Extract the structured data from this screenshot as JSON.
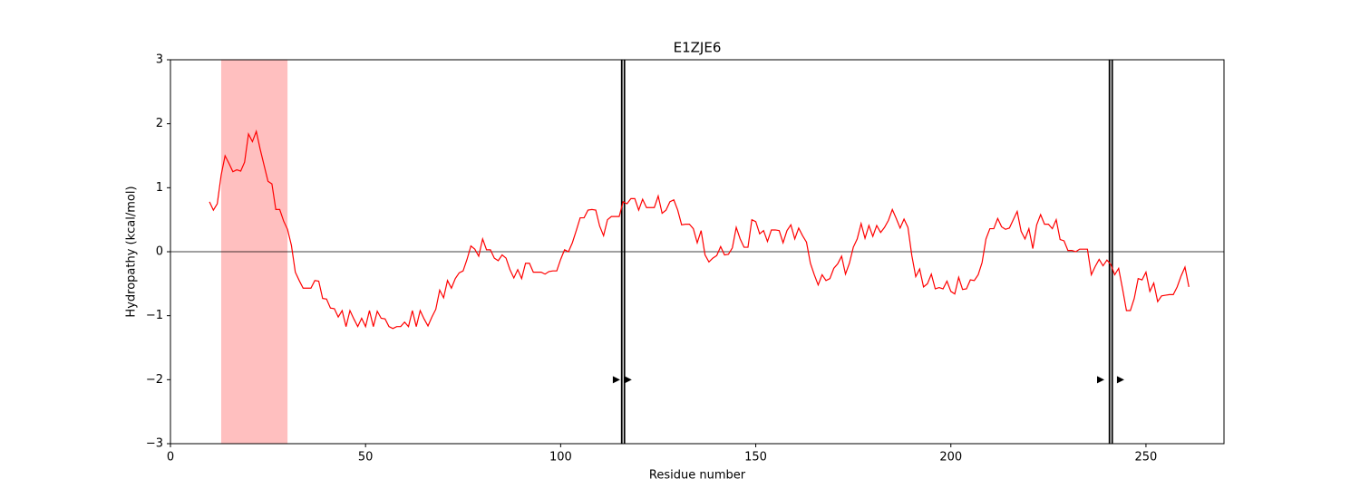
{
  "chart_data": {
    "type": "line",
    "title": "E1ZJE6",
    "xlabel": "Residue number",
    "ylabel": "Hydropathy (kcal/mol)",
    "x": [
      10,
      11,
      12,
      13,
      14,
      15,
      16,
      17,
      18,
      19,
      20,
      21,
      22,
      23,
      24,
      25,
      26,
      27,
      28,
      29,
      30,
      31,
      32,
      33,
      34,
      35,
      36,
      37,
      38,
      39,
      40,
      41,
      42,
      43,
      44,
      45,
      46,
      47,
      48,
      49,
      50,
      51,
      52,
      53,
      54,
      55,
      56,
      57,
      58,
      59,
      60,
      61,
      62,
      63,
      64,
      65,
      66,
      67,
      68,
      69,
      70,
      71,
      72,
      73,
      74,
      75,
      76,
      77,
      78,
      79,
      80,
      81,
      82,
      83,
      84,
      85,
      86,
      87,
      88,
      89,
      90,
      91,
      92,
      93,
      94,
      95,
      96,
      97,
      98,
      99,
      100,
      101,
      102,
      103,
      104,
      105,
      106,
      107,
      108,
      109,
      110,
      111,
      112,
      113,
      114,
      115,
      116,
      117,
      118,
      119,
      120,
      121,
      122,
      123,
      124,
      125,
      126,
      127,
      128,
      129,
      130,
      131,
      132,
      133,
      134,
      135,
      136,
      137,
      138,
      139,
      140,
      141,
      142,
      143,
      144,
      145,
      146,
      147,
      148,
      149,
      150,
      151,
      152,
      153,
      154,
      155,
      156,
      157,
      158,
      159,
      160,
      161,
      162,
      163,
      164,
      165,
      166,
      167,
      168,
      169,
      170,
      171,
      172,
      173,
      174,
      175,
      176,
      177,
      178,
      179,
      180,
      181,
      182,
      183,
      184,
      185,
      186,
      187,
      188,
      189,
      190,
      191,
      192,
      193,
      194,
      195,
      196,
      197,
      198,
      199,
      200,
      201,
      202,
      203,
      204,
      205,
      206,
      207,
      208,
      209,
      210,
      211,
      212,
      213,
      214,
      215,
      216,
      217,
      218,
      219,
      220,
      221,
      222,
      223,
      224,
      225,
      226,
      227,
      228,
      229,
      230,
      231,
      232,
      233,
      234,
      235,
      236,
      237,
      238,
      239,
      240,
      241,
      242,
      243,
      244,
      245,
      246,
      247,
      248,
      249,
      250,
      251,
      252,
      253,
      254,
      255,
      256,
      257,
      258,
      259,
      260,
      261
    ],
    "series": [
      {
        "color": "#ff0000",
        "values": [
          0.78,
          0.65,
          0.75,
          1.2,
          1.5,
          1.38,
          1.25,
          1.28,
          1.26,
          1.4,
          1.84,
          1.72,
          1.88,
          1.6,
          1.35,
          1.1,
          1.06,
          0.66,
          0.66,
          0.48,
          0.35,
          0.1,
          -0.32,
          -0.45,
          -0.57,
          -0.57,
          -0.57,
          -0.45,
          -0.46,
          -0.73,
          -0.74,
          -0.88,
          -0.89,
          -1.02,
          -0.92,
          -1.17,
          -0.92,
          -1.05,
          -1.17,
          -1.04,
          -1.17,
          -0.92,
          -1.17,
          -0.93,
          -1.04,
          -1.05,
          -1.17,
          -1.2,
          -1.17,
          -1.17,
          -1.1,
          -1.17,
          -0.92,
          -1.17,
          -0.92,
          -1.05,
          -1.16,
          -1.02,
          -0.9,
          -0.6,
          -0.72,
          -0.45,
          -0.57,
          -0.42,
          -0.33,
          -0.3,
          -0.12,
          0.09,
          0.04,
          -0.07,
          0.2,
          0.03,
          0.03,
          -0.1,
          -0.14,
          -0.05,
          -0.1,
          -0.28,
          -0.41,
          -0.28,
          -0.42,
          -0.18,
          -0.18,
          -0.32,
          -0.32,
          -0.32,
          -0.35,
          -0.31,
          -0.3,
          -0.3,
          -0.12,
          0.03,
          0.0,
          0.14,
          0.33,
          0.53,
          0.53,
          0.65,
          0.66,
          0.65,
          0.4,
          0.25,
          0.5,
          0.55,
          0.55,
          0.55,
          0.78,
          0.75,
          0.83,
          0.83,
          0.65,
          0.82,
          0.69,
          0.69,
          0.69,
          0.87,
          0.6,
          0.65,
          0.78,
          0.81,
          0.65,
          0.42,
          0.43,
          0.43,
          0.36,
          0.14,
          0.33,
          -0.05,
          -0.16,
          -0.1,
          -0.06,
          0.08,
          -0.05,
          -0.04,
          0.06,
          0.38,
          0.2,
          0.07,
          0.07,
          0.5,
          0.47,
          0.28,
          0.33,
          0.16,
          0.34,
          0.34,
          0.33,
          0.14,
          0.33,
          0.42,
          0.2,
          0.37,
          0.25,
          0.15,
          -0.18,
          -0.36,
          -0.52,
          -0.36,
          -0.45,
          -0.42,
          -0.26,
          -0.19,
          -0.07,
          -0.35,
          -0.18,
          0.07,
          0.2,
          0.44,
          0.21,
          0.41,
          0.24,
          0.41,
          0.3,
          0.38,
          0.49,
          0.66,
          0.52,
          0.37,
          0.51,
          0.38,
          -0.06,
          -0.39,
          -0.27,
          -0.55,
          -0.5,
          -0.35,
          -0.58,
          -0.56,
          -0.58,
          -0.46,
          -0.62,
          -0.66,
          -0.4,
          -0.59,
          -0.58,
          -0.44,
          -0.45,
          -0.36,
          -0.17,
          0.2,
          0.36,
          0.36,
          0.52,
          0.39,
          0.35,
          0.37,
          0.5,
          0.63,
          0.32,
          0.2,
          0.36,
          0.05,
          0.42,
          0.58,
          0.43,
          0.43,
          0.36,
          0.5,
          0.19,
          0.17,
          0.02,
          0.02,
          0.0,
          0.04,
          0.04,
          0.04,
          -0.36,
          -0.23,
          -0.12,
          -0.22,
          -0.13,
          -0.2,
          -0.36,
          -0.26,
          -0.58,
          -0.92,
          -0.92,
          -0.73,
          -0.42,
          -0.44,
          -0.32,
          -0.62,
          -0.49,
          -0.78,
          -0.69,
          -0.68,
          -0.67,
          -0.67,
          -0.55,
          -0.38,
          -0.24,
          -0.55
        ]
      }
    ],
    "span": [
      13,
      30
    ],
    "span_color": "#ffbfbf",
    "hline": 0,
    "vlines": [
      116,
      241
    ],
    "markers": {
      "x": [
        114.3,
        117.3,
        238.4,
        243.5
      ],
      "y": [
        -2,
        -2,
        -2,
        -2
      ]
    },
    "xlim": [
      0,
      270
    ],
    "ylim": [
      -3,
      3
    ],
    "xticks": [
      0,
      50,
      100,
      150,
      200,
      250
    ],
    "yticks": [
      {
        "value": -3,
        "label": "−3"
      },
      {
        "value": -2,
        "label": "−2"
      },
      {
        "value": -1,
        "label": "−1"
      },
      0,
      1,
      2,
      3
    ],
    "grid": false
  }
}
